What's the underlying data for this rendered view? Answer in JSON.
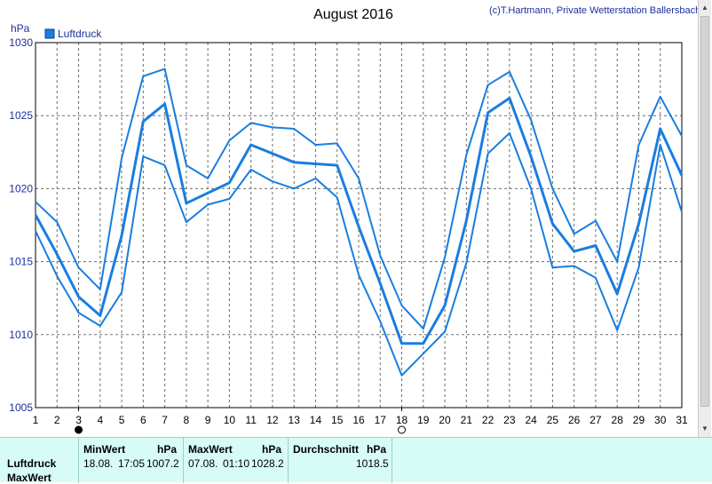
{
  "chart_data": {
    "type": "line",
    "title": "August 2016",
    "copyright": "(c)T.Hartmann, Private Wetterstation Ballersbach",
    "ylabel": "hPa",
    "xlabel": "",
    "ylim": [
      1005,
      1030
    ],
    "xlim": [
      1,
      31
    ],
    "x": [
      1,
      2,
      3,
      4,
      5,
      6,
      7,
      8,
      9,
      10,
      11,
      12,
      13,
      14,
      15,
      16,
      17,
      18,
      19,
      20,
      21,
      22,
      23,
      24,
      25,
      26,
      27,
      28,
      29,
      30,
      31
    ],
    "xticks": [
      "1",
      "2",
      "3",
      "4",
      "5",
      "6",
      "7",
      "8",
      "9",
      "10",
      "11",
      "12",
      "13",
      "14",
      "15",
      "16",
      "17",
      "18",
      "19",
      "20",
      "21",
      "22",
      "23",
      "24",
      "25",
      "26",
      "27",
      "28",
      "29",
      "30",
      "31"
    ],
    "yticks": [
      "1005",
      "1010",
      "1015",
      "1020",
      "1025",
      "1030"
    ],
    "grid": true,
    "legend": "top-left",
    "legend_label": "Luftdruck",
    "color": "#1a7de0",
    "moon_markers": [
      {
        "day": 3,
        "phase": "new-moon"
      },
      {
        "day": 18,
        "phase": "full-moon"
      }
    ],
    "series": [
      {
        "name": "Luftdruck",
        "role": "mean",
        "values": [
          1018.2,
          1015.5,
          1012.6,
          1011.3,
          1016.8,
          1024.6,
          1025.8,
          1019.0,
          1019.7,
          1020.4,
          1023.0,
          1022.4,
          1021.8,
          1021.7,
          1021.6,
          1017.4,
          1013.5,
          1009.4,
          1009.4,
          1012.0,
          1017.8,
          1025.2,
          1026.2,
          1022.2,
          1017.6,
          1015.7,
          1016.1,
          1012.8,
          1017.6,
          1024.1,
          1020.9
        ]
      },
      {
        "role": "max",
        "values": [
          1019.1,
          1017.7,
          1014.6,
          1013.1,
          1022.1,
          1027.7,
          1028.2,
          1021.6,
          1020.7,
          1023.3,
          1024.5,
          1024.2,
          1024.1,
          1023.0,
          1023.1,
          1020.7,
          1015.4,
          1012.0,
          1010.4,
          1015.3,
          1022.3,
          1027.1,
          1028.0,
          1024.7,
          1020.0,
          1016.9,
          1017.8,
          1015.0,
          1023.0,
          1026.3,
          1023.6
        ]
      },
      {
        "role": "min",
        "values": [
          1017.1,
          1014.0,
          1011.5,
          1010.6,
          1012.9,
          1022.2,
          1021.6,
          1017.7,
          1018.9,
          1019.3,
          1021.3,
          1020.5,
          1020.0,
          1020.7,
          1019.4,
          1014.1,
          1010.9,
          1007.2,
          1008.7,
          1010.2,
          1014.9,
          1022.4,
          1023.8,
          1020.0,
          1014.6,
          1014.7,
          1013.9,
          1010.3,
          1014.6,
          1023.0,
          1018.4
        ]
      }
    ]
  },
  "stats": {
    "row_labels": [
      "Luftdruck",
      "MaxWert"
    ],
    "min": {
      "header": "MinWert",
      "unit": "hPa",
      "date": "18.08.",
      "time": "17:05",
      "value": "1007.2"
    },
    "max": {
      "header": "MaxWert",
      "unit": "hPa",
      "date": "07.08.",
      "time": "01:10",
      "value": "1028.2"
    },
    "avg": {
      "header": "Durchschnitt",
      "unit": "hPa",
      "value": "1018.5"
    }
  }
}
